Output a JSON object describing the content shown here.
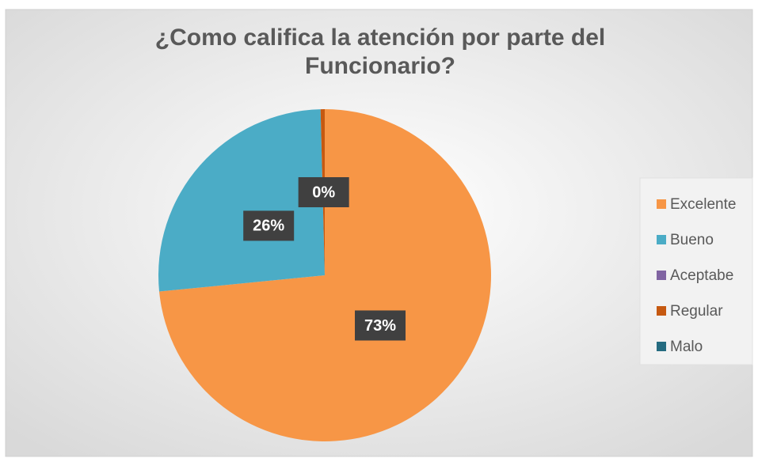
{
  "chart_data": {
    "type": "pie",
    "title": "¿Como califica la atención por parte del Funcionario?",
    "categories": [
      "Excelente",
      "Bueno",
      "Aceptabe",
      "Regular",
      "Malo"
    ],
    "values": [
      73,
      26,
      0,
      0.4,
      0
    ],
    "value_labels": [
      "73%",
      "26%",
      null,
      "0%",
      null
    ],
    "colors": [
      "#f79646",
      "#4bacc6",
      "#8064a2",
      "#c65911",
      "#256b80"
    ],
    "legend": "right"
  }
}
